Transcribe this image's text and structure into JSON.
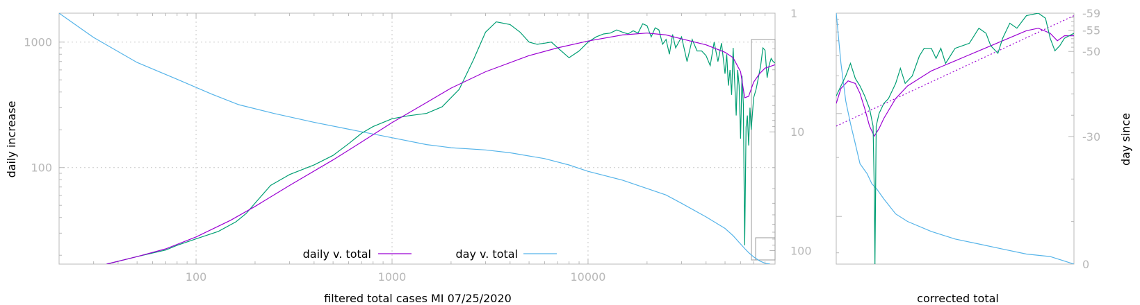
{
  "chart_data": [
    {
      "type": "line",
      "xlabel": "filtered total cases MI 07/25/2020",
      "ylabel": "daily increase",
      "y2label": "",
      "xscale": "log",
      "yscale": "log",
      "y2scale": "log-reversed",
      "xlim": [
        20,
        90000
      ],
      "ylim": [
        17,
        1700
      ],
      "y2lim": [
        1,
        130
      ],
      "grid": true,
      "legend_position": "bottom-center",
      "x_ticks": [
        {
          "value": 100,
          "label": "100"
        },
        {
          "value": 1000,
          "label": "1000"
        },
        {
          "value": 10000,
          "label": "10000"
        }
      ],
      "y_ticks": [
        {
          "value": 100,
          "label": "100"
        },
        {
          "value": 1000,
          "label": "1000"
        }
      ],
      "y2_ticks": [
        {
          "value": 1,
          "label": "1"
        },
        {
          "value": 10,
          "label": "10"
        },
        {
          "value": 100,
          "label": "100"
        }
      ],
      "series": [
        {
          "name": "daily v. total",
          "color": "#9b00d3",
          "axis": "y",
          "points": [
            [
              35,
              17
            ],
            [
              50,
              19.5
            ],
            [
              70,
              22.5
            ],
            [
              100,
              28
            ],
            [
              150,
              38
            ],
            [
              200,
              49
            ],
            [
              300,
              72
            ],
            [
              500,
              115
            ],
            [
              700,
              160
            ],
            [
              1000,
              228
            ],
            [
              1500,
              330
            ],
            [
              2000,
              430
            ],
            [
              3000,
              580
            ],
            [
              5000,
              780
            ],
            [
              7000,
              900
            ],
            [
              10000,
              1020
            ],
            [
              15000,
              1140
            ],
            [
              20000,
              1180
            ],
            [
              25000,
              1140
            ],
            [
              30000,
              1060
            ],
            [
              40000,
              950
            ],
            [
              50000,
              830
            ],
            [
              55000,
              750
            ],
            [
              60000,
              580
            ],
            [
              63000,
              360
            ],
            [
              66000,
              370
            ],
            [
              70000,
              480
            ],
            [
              75000,
              560
            ],
            [
              80000,
              620
            ],
            [
              85000,
              640
            ],
            [
              90000,
              660
            ]
          ]
        },
        {
          "name": "day v. total",
          "color": "#56b4e9",
          "axis": "y2",
          "points": [
            [
              20,
              1
            ],
            [
              30,
              1.6
            ],
            [
              50,
              2.6
            ],
            [
              80,
              3.6
            ],
            [
              120,
              4.8
            ],
            [
              165,
              5.9
            ],
            [
              250,
              7
            ],
            [
              400,
              8.3
            ],
            [
              600,
              9.5
            ],
            [
              1000,
              11.2
            ],
            [
              1500,
              12.8
            ],
            [
              2000,
              13.6
            ],
            [
              3000,
              14.2
            ],
            [
              4000,
              15
            ],
            [
              6000,
              16.8
            ],
            [
              8000,
              19
            ],
            [
              10000,
              21.5
            ],
            [
              15000,
              25.5
            ],
            [
              20000,
              30
            ],
            [
              25000,
              34
            ],
            [
              30000,
              40
            ],
            [
              40000,
              52
            ],
            [
              50000,
              65
            ],
            [
              55000,
              75
            ],
            [
              60000,
              88
            ],
            [
              63000,
              96
            ],
            [
              66000,
              104
            ],
            [
              70000,
              113
            ],
            [
              75000,
              122
            ],
            [
              80000,
              128
            ],
            [
              85000,
              130
            ]
          ]
        },
        {
          "name": "",
          "color": "#009e73",
          "axis": "y",
          "points": [
            [
              35,
              17
            ],
            [
              50,
              19.5
            ],
            [
              70,
              22
            ],
            [
              80,
              24
            ],
            [
              100,
              27
            ],
            [
              130,
              31
            ],
            [
              160,
              37
            ],
            [
              180,
              43
            ],
            [
              200,
              52
            ],
            [
              240,
              72
            ],
            [
              300,
              88
            ],
            [
              400,
              105
            ],
            [
              500,
              125
            ],
            [
              600,
              155
            ],
            [
              700,
              188
            ],
            [
              800,
              212
            ],
            [
              1000,
              245
            ],
            [
              1200,
              258
            ],
            [
              1500,
              270
            ],
            [
              1800,
              305
            ],
            [
              2200,
              420
            ],
            [
              2600,
              720
            ],
            [
              3000,
              1200
            ],
            [
              3400,
              1450
            ],
            [
              4000,
              1380
            ],
            [
              4500,
              1200
            ],
            [
              5000,
              1000
            ],
            [
              5500,
              960
            ],
            [
              6000,
              980
            ],
            [
              6500,
              1000
            ],
            [
              7000,
              900
            ],
            [
              8000,
              750
            ],
            [
              9000,
              850
            ],
            [
              10000,
              1000
            ],
            [
              11000,
              1100
            ],
            [
              12000,
              1160
            ],
            [
              13000,
              1180
            ],
            [
              14000,
              1250
            ],
            [
              15000,
              1200
            ],
            [
              16000,
              1160
            ],
            [
              17000,
              1230
            ],
            [
              18000,
              1180
            ],
            [
              19000,
              1400
            ],
            [
              20000,
              1350
            ],
            [
              21000,
              1100
            ],
            [
              22000,
              1300
            ],
            [
              23000,
              1250
            ],
            [
              24000,
              960
            ],
            [
              25000,
              1050
            ],
            [
              26000,
              800
            ],
            [
              27000,
              1150
            ],
            [
              28000,
              900
            ],
            [
              30000,
              1100
            ],
            [
              32000,
              700
            ],
            [
              34000,
              1050
            ],
            [
              36000,
              850
            ],
            [
              38000,
              850
            ],
            [
              40000,
              780
            ],
            [
              42000,
              650
            ],
            [
              44000,
              1000
            ],
            [
              46000,
              700
            ],
            [
              48000,
              980
            ],
            [
              50000,
              560
            ],
            [
              51000,
              800
            ],
            [
              52000,
              450
            ],
            [
              53000,
              600
            ],
            [
              54000,
              380
            ],
            [
              55000,
              900
            ],
            [
              56000,
              480
            ],
            [
              57000,
              260
            ],
            [
              58000,
              600
            ],
            [
              59000,
              450
            ],
            [
              60000,
              170
            ],
            [
              61000,
              540
            ],
            [
              62000,
              320
            ],
            [
              63000,
              24
            ],
            [
              64000,
              210
            ],
            [
              65000,
              260
            ],
            [
              66000,
              150
            ],
            [
              67000,
              300
            ],
            [
              68000,
              200
            ],
            [
              69000,
              270
            ],
            [
              70000,
              360
            ],
            [
              72000,
              420
            ],
            [
              74000,
              520
            ],
            [
              76000,
              650
            ],
            [
              78000,
              900
            ],
            [
              80000,
              860
            ],
            [
              82000,
              520
            ],
            [
              84000,
              660
            ],
            [
              86000,
              740
            ],
            [
              88000,
              700
            ],
            [
              90000,
              680
            ]
          ]
        }
      ]
    },
    {
      "type": "line",
      "xlabel": "corrected total",
      "ylabel": "",
      "y2label": "day since",
      "x_domain": [
        0,
        1
      ],
      "y_domain": [
        0,
        1
      ],
      "y2lim": [
        0,
        -59
      ],
      "y2_ticks": [
        {
          "value": -59,
          "label": "-59"
        },
        {
          "value": -55,
          "label": "-55"
        },
        {
          "value": -50,
          "label": "-50"
        },
        {
          "value": -30,
          "label": "-30"
        },
        {
          "value": 0,
          "label": "0"
        }
      ],
      "series": [
        {
          "name": "",
          "color": "#9b00d3",
          "dash": false,
          "points": [
            [
              0,
              0.64
            ],
            [
              0.02,
              0.7
            ],
            [
              0.05,
              0.73
            ],
            [
              0.08,
              0.72
            ],
            [
              0.1,
              0.68
            ],
            [
              0.12,
              0.62
            ],
            [
              0.14,
              0.55
            ],
            [
              0.16,
              0.51
            ],
            [
              0.18,
              0.54
            ],
            [
              0.2,
              0.58
            ],
            [
              0.25,
              0.66
            ],
            [
              0.3,
              0.71
            ],
            [
              0.35,
              0.74
            ],
            [
              0.4,
              0.77
            ],
            [
              0.45,
              0.79
            ],
            [
              0.5,
              0.81
            ],
            [
              0.55,
              0.83
            ],
            [
              0.6,
              0.85
            ],
            [
              0.65,
              0.87
            ],
            [
              0.7,
              0.89
            ],
            [
              0.75,
              0.91
            ],
            [
              0.8,
              0.93
            ],
            [
              0.85,
              0.94
            ],
            [
              0.9,
              0.92
            ],
            [
              0.93,
              0.89
            ],
            [
              0.96,
              0.91
            ],
            [
              1,
              0.91
            ]
          ]
        },
        {
          "name": "",
          "color": "#9b00d3",
          "dash": true,
          "points": [
            [
              0,
              0.55
            ],
            [
              1,
              0.99
            ]
          ]
        },
        {
          "name": "",
          "color": "#56b4e9",
          "dash": false,
          "points": [
            [
              0,
              1
            ],
            [
              0.02,
              0.8
            ],
            [
              0.04,
              0.65
            ],
            [
              0.06,
              0.56
            ],
            [
              0.08,
              0.48
            ],
            [
              0.1,
              0.4
            ],
            [
              0.13,
              0.36
            ],
            [
              0.15,
              0.32
            ],
            [
              0.17,
              0.3
            ],
            [
              0.2,
              0.26
            ],
            [
              0.25,
              0.2
            ],
            [
              0.3,
              0.17
            ],
            [
              0.4,
              0.13
            ],
            [
              0.5,
              0.1
            ],
            [
              0.6,
              0.08
            ],
            [
              0.7,
              0.06
            ],
            [
              0.8,
              0.04
            ],
            [
              0.9,
              0.03
            ],
            [
              1,
              0
            ]
          ]
        },
        {
          "name": "",
          "color": "#009e73",
          "dash": false,
          "points": [
            [
              0,
              0.67
            ],
            [
              0.02,
              0.71
            ],
            [
              0.04,
              0.75
            ],
            [
              0.06,
              0.8
            ],
            [
              0.08,
              0.74
            ],
            [
              0.1,
              0.71
            ],
            [
              0.12,
              0.67
            ],
            [
              0.14,
              0.62
            ],
            [
              0.155,
              0.55
            ],
            [
              0.16,
              0.3
            ],
            [
              0.163,
              0
            ],
            [
              0.168,
              0.55
            ],
            [
              0.18,
              0.6
            ],
            [
              0.2,
              0.64
            ],
            [
              0.22,
              0.66
            ],
            [
              0.25,
              0.72
            ],
            [
              0.27,
              0.78
            ],
            [
              0.29,
              0.72
            ],
            [
              0.32,
              0.75
            ],
            [
              0.35,
              0.83
            ],
            [
              0.37,
              0.86
            ],
            [
              0.4,
              0.86
            ],
            [
              0.42,
              0.82
            ],
            [
              0.44,
              0.86
            ],
            [
              0.46,
              0.8
            ],
            [
              0.48,
              0.83
            ],
            [
              0.5,
              0.86
            ],
            [
              0.53,
              0.87
            ],
            [
              0.56,
              0.88
            ],
            [
              0.6,
              0.94
            ],
            [
              0.63,
              0.92
            ],
            [
              0.65,
              0.87
            ],
            [
              0.68,
              0.84
            ],
            [
              0.7,
              0.9
            ],
            [
              0.73,
              0.96
            ],
            [
              0.76,
              0.94
            ],
            [
              0.8,
              0.99
            ],
            [
              0.85,
              1
            ],
            [
              0.88,
              0.98
            ],
            [
              0.9,
              0.9
            ],
            [
              0.92,
              0.85
            ],
            [
              0.94,
              0.87
            ],
            [
              0.96,
              0.9
            ],
            [
              1,
              0.92
            ]
          ]
        }
      ]
    }
  ]
}
